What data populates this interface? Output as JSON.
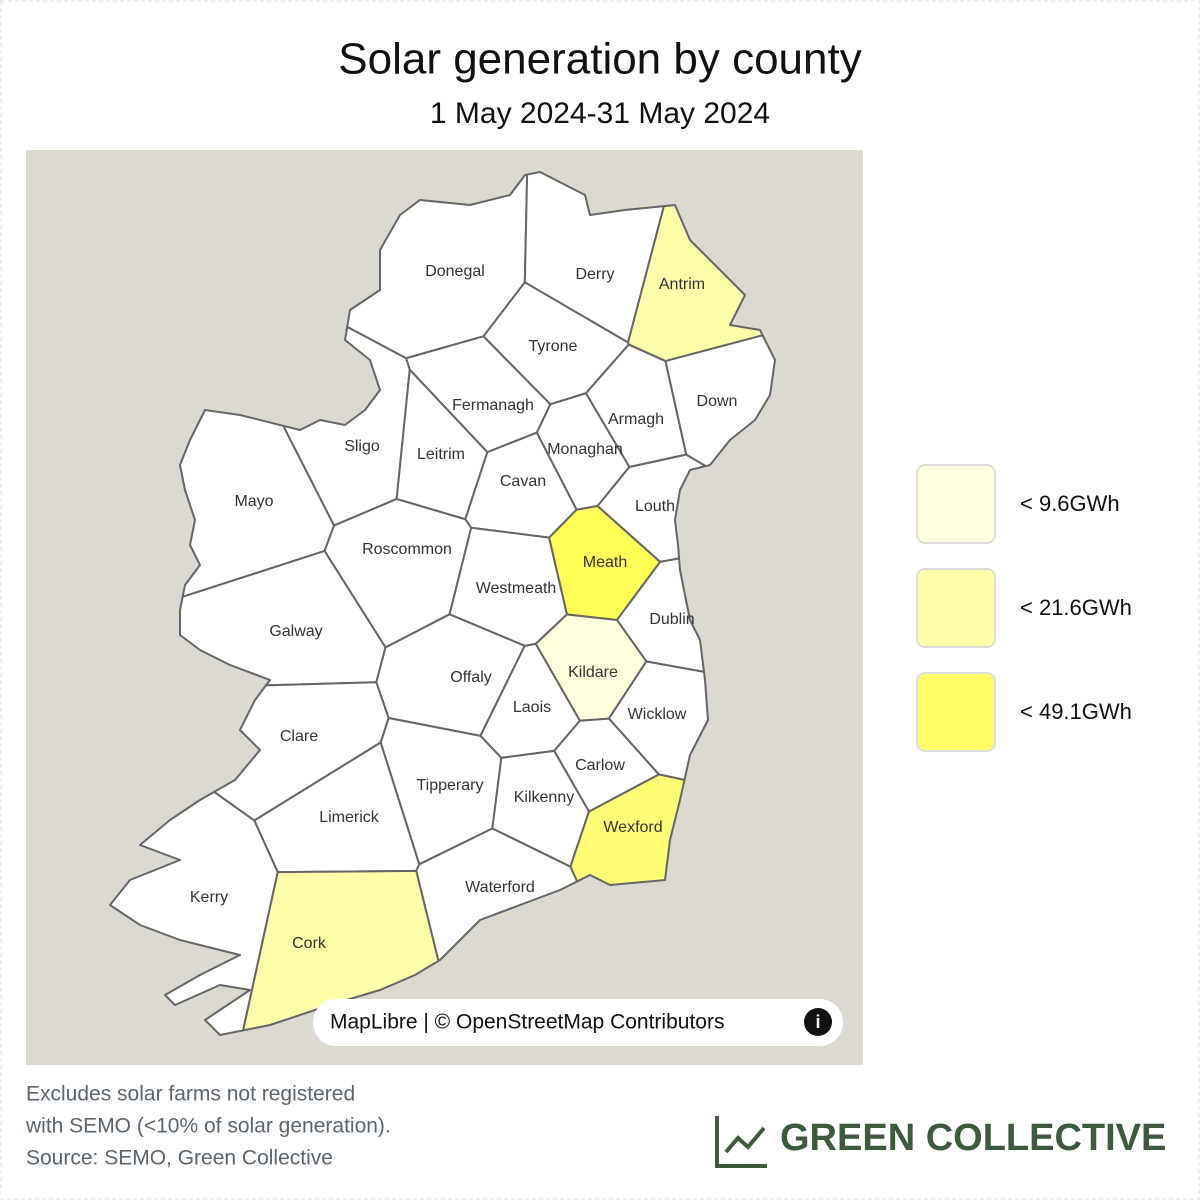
{
  "header": {
    "title": "Solar generation by county",
    "subtitle": "1 May 2024-31 May 2024"
  },
  "map": {
    "counties": [
      {
        "name": "Donegal",
        "color": "#ffffff"
      },
      {
        "name": "Derry",
        "color": "#ffffff"
      },
      {
        "name": "Antrim",
        "color": "#ffffaa"
      },
      {
        "name": "Tyrone",
        "color": "#ffffff"
      },
      {
        "name": "Down",
        "color": "#ffffff"
      },
      {
        "name": "Fermanagh",
        "color": "#ffffff"
      },
      {
        "name": "Armagh",
        "color": "#ffffff"
      },
      {
        "name": "Sligo",
        "color": "#ffffff"
      },
      {
        "name": "Leitrim",
        "color": "#ffffff"
      },
      {
        "name": "Monaghan",
        "color": "#ffffff"
      },
      {
        "name": "Mayo",
        "color": "#ffffff"
      },
      {
        "name": "Cavan",
        "color": "#ffffff"
      },
      {
        "name": "Louth",
        "color": "#ffffff"
      },
      {
        "name": "Roscommon",
        "color": "#ffffff"
      },
      {
        "name": "Meath",
        "color": "#ffff55"
      },
      {
        "name": "Westmeath",
        "color": "#ffffff"
      },
      {
        "name": "Dublin",
        "color": "#ffffff"
      },
      {
        "name": "Galway",
        "color": "#ffffff"
      },
      {
        "name": "Offaly",
        "color": "#ffffff"
      },
      {
        "name": "Kildare",
        "color": "#ffffdd"
      },
      {
        "name": "Laois",
        "color": "#ffffff"
      },
      {
        "name": "Wicklow",
        "color": "#ffffff"
      },
      {
        "name": "Clare",
        "color": "#ffffff"
      },
      {
        "name": "Carlow",
        "color": "#ffffff"
      },
      {
        "name": "Tipperary",
        "color": "#ffffff"
      },
      {
        "name": "Kilkenny",
        "color": "#ffffff"
      },
      {
        "name": "Limerick",
        "color": "#ffffff"
      },
      {
        "name": "Wexford",
        "color": "#ffff77"
      },
      {
        "name": "Waterford",
        "color": "#ffffff"
      },
      {
        "name": "Kerry",
        "color": "#ffffff"
      },
      {
        "name": "Cork",
        "color": "#ffffaa"
      }
    ],
    "attribution": "MapLibre | © OpenStreetMap Contributors"
  },
  "legend": [
    {
      "label": "< 9.6GWh",
      "color": "#ffffdd"
    },
    {
      "label": "< 21.6GWh",
      "color": "#ffffaa"
    },
    {
      "label": "< 49.1GWh",
      "color": "#ffff66"
    }
  ],
  "footer": {
    "note": [
      "Excludes solar farms not registered",
      "with SEMO (<10% of solar generation)."
    ],
    "source": "Source: SEMO, Green Collective",
    "brand": "GREEN COLLECTIVE"
  }
}
